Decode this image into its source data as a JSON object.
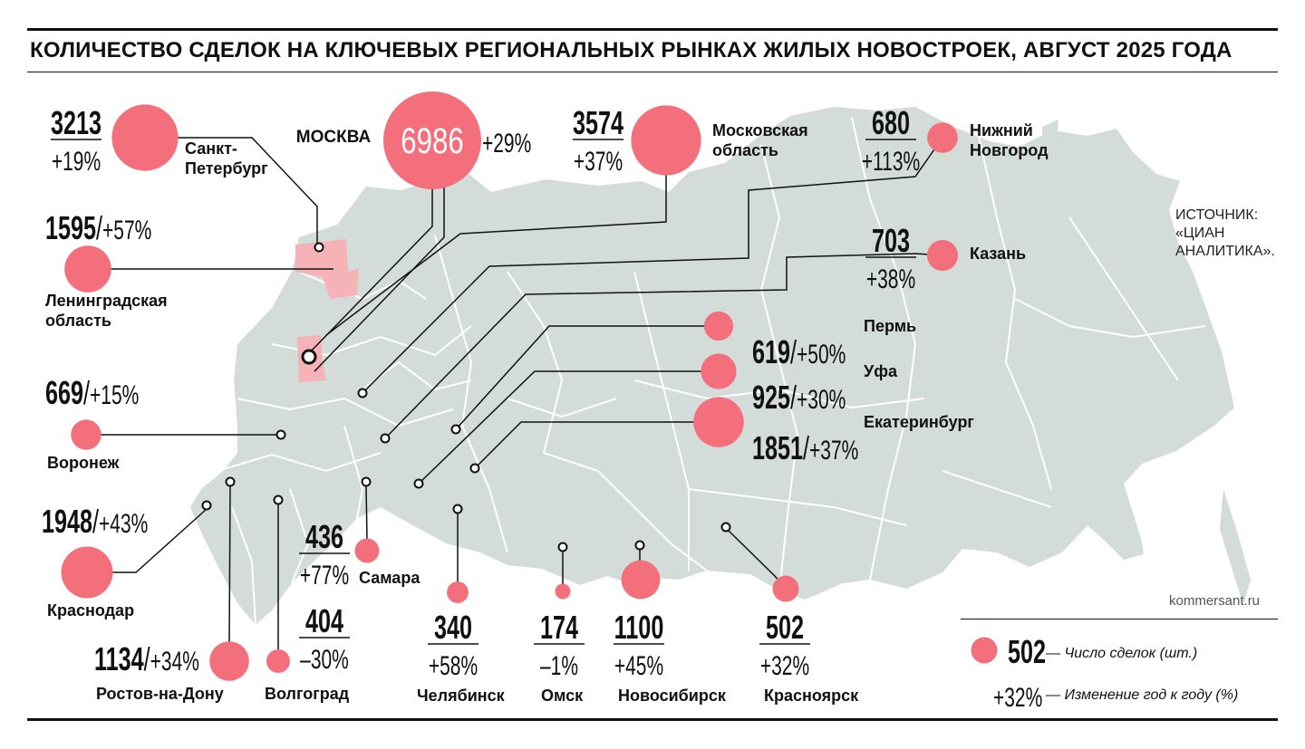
{
  "title": "КОЛИЧЕСТВО СДЕЛОК НА КЛЮЧЕВЫХ РЕГИОНАЛЬНЫХ РЫНКАХ ЖИЛЫХ НОВОСТРОЕК, АВГУСТ 2025 ГОДА",
  "source": [
    "ИСТОЧНИК:",
    "«ЦИАН",
    "АНАЛИТИКА»."
  ],
  "credit": "kommersant.ru",
  "colors": {
    "bubble": "#f46f7c",
    "map": "#d4dcda",
    "highlight": "#f5b3b7",
    "text": "#111111"
  },
  "legend": {
    "deals_value": "502",
    "deals_label": "— Число сделок (шт.)",
    "change_value": "+32%",
    "change_label": "— Изменение год к году (%)"
  },
  "chart_data": {
    "type": "bubble-map",
    "title": "КОЛИЧЕСТВО СДЕЛОК НА КЛЮЧЕВЫХ РЕГИОНАЛЬНЫХ РЫНКАХ ЖИЛЫХ НОВОСТРОЕК, АВГУСТ 2025 ГОДА",
    "units": {
      "deals": "шт.",
      "change": "%"
    },
    "regions": [
      {
        "name": "МОСКВА",
        "deals": 6986,
        "change": "+29%"
      },
      {
        "name": "Московская область",
        "deals": 3574,
        "change": "+37%"
      },
      {
        "name": "Санкт-Петербург",
        "deals": 3213,
        "change": "+19%"
      },
      {
        "name": "Ленинградская область",
        "deals": 1595,
        "change": "+57%"
      },
      {
        "name": "Нижний Новгород",
        "deals": 680,
        "change": "+113%"
      },
      {
        "name": "Казань",
        "deals": 703,
        "change": "+38%"
      },
      {
        "name": "Пермь",
        "deals": 619,
        "change": "+50%"
      },
      {
        "name": "Уфа",
        "deals": 925,
        "change": "+30%"
      },
      {
        "name": "Екатеринбург",
        "deals": 1851,
        "change": "+37%"
      },
      {
        "name": "Воронеж",
        "deals": 669,
        "change": "+15%"
      },
      {
        "name": "Краснодар",
        "deals": 1948,
        "change": "+43%"
      },
      {
        "name": "Ростов-на-Дону",
        "deals": 1134,
        "change": "+34%"
      },
      {
        "name": "Волгоград",
        "deals": 404,
        "change": "–30%"
      },
      {
        "name": "Самара",
        "deals": 436,
        "change": "+77%"
      },
      {
        "name": "Челябинск",
        "deals": 340,
        "change": "+58%"
      },
      {
        "name": "Омск",
        "deals": 174,
        "change": "–1%"
      },
      {
        "name": "Новосибирск",
        "deals": 1100,
        "change": "+45%"
      },
      {
        "name": "Красноярск",
        "deals": 502,
        "change": "+32%"
      }
    ]
  }
}
